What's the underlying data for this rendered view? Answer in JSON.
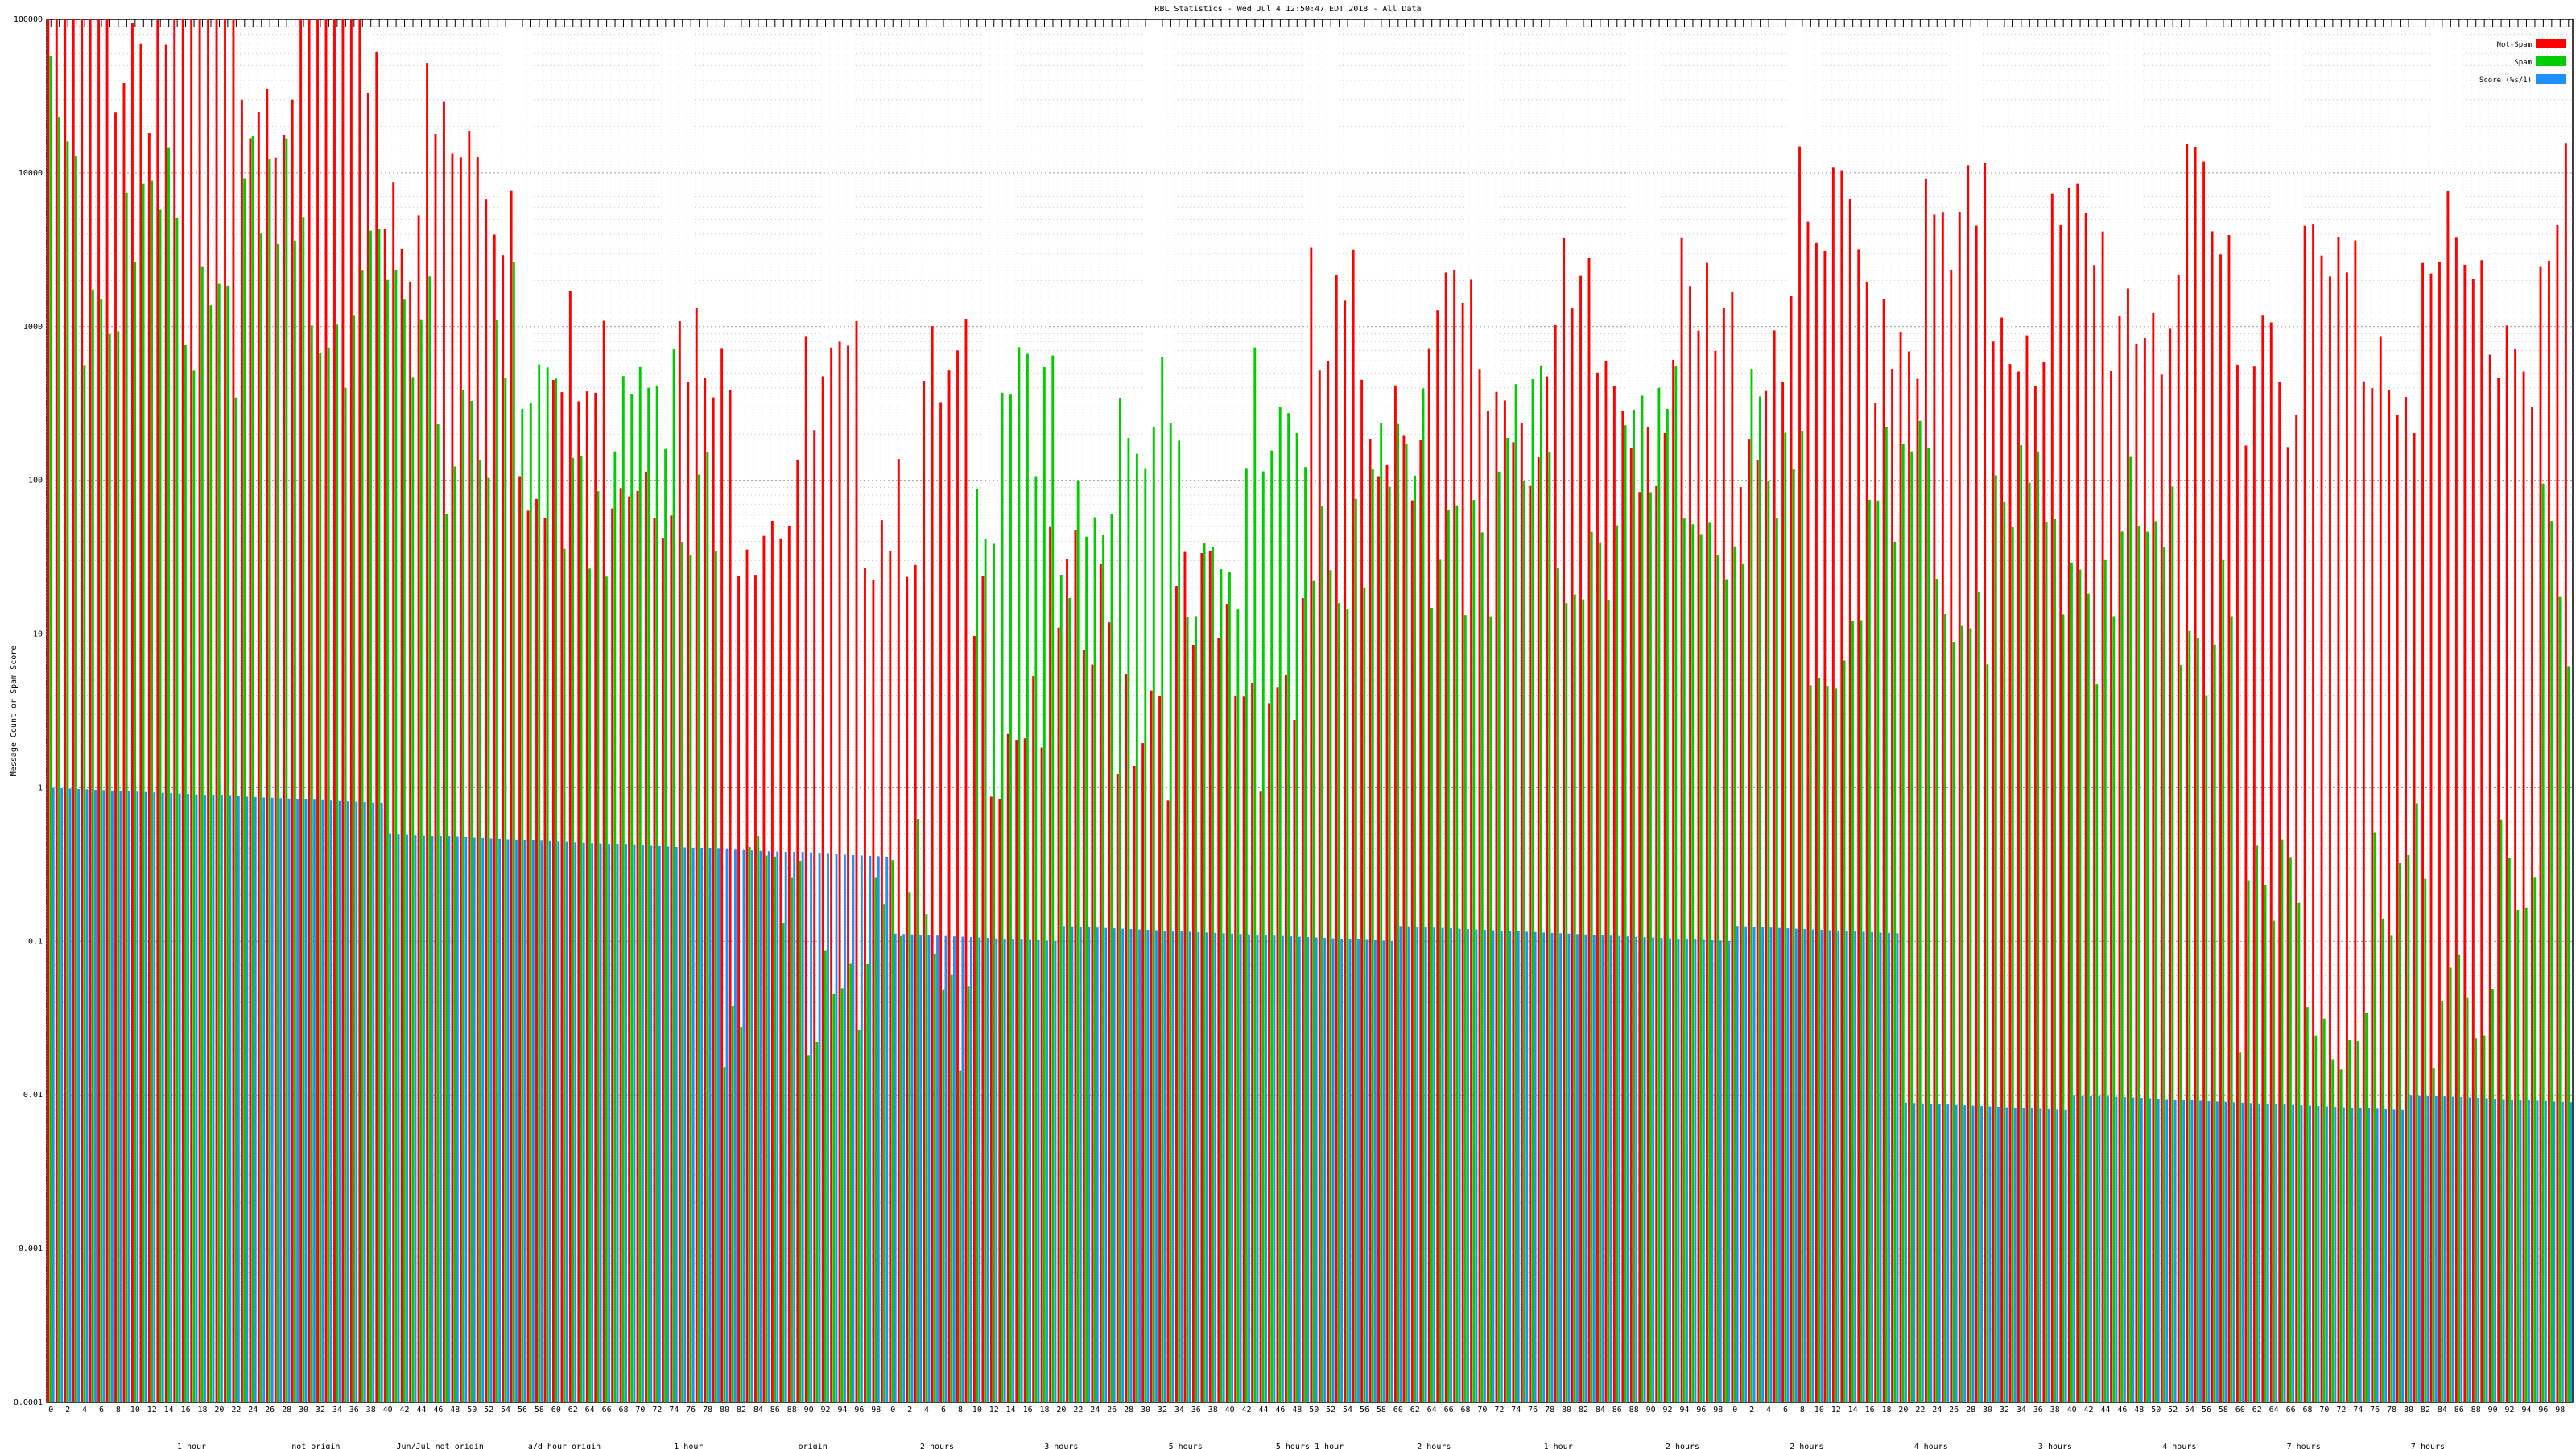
{
  "chart_data": {
    "type": "bar",
    "title": "RBL Statistics - Wed Jul  4 12:50:47 EDT 2018 - All Data",
    "ylabel": "Message Count or Spam Score",
    "xlabel": "",
    "scale": "log",
    "ylim": [
      0.0001,
      100000
    ],
    "yticks": [
      "0.0001",
      "0.001",
      "0.01",
      "0.1",
      "1",
      "10",
      "100",
      "1000",
      "10000",
      "100000"
    ],
    "grid": true,
    "legend_position": "top-right",
    "series": [
      {
        "name": "Not-Spam",
        "color": "#ff0000"
      },
      {
        "name": "Spam",
        "color": "#00cc00"
      },
      {
        "name": "Score (%s/1)",
        "color": "#1e90ff"
      }
    ],
    "group_count": 300,
    "segments": {
      "notspam": [
        [
          0,
          4,
          6
        ],
        [
          4,
          40,
          5
        ],
        [
          40,
          56,
          4
        ],
        [
          56,
          80,
          2.5
        ],
        [
          80,
          110,
          2.2
        ],
        [
          110,
          150,
          0.8
        ],
        [
          150,
          205,
          2.7
        ],
        [
          205,
          260,
          3.3
        ],
        [
          260,
          296,
          3.1
        ],
        [
          296,
          300,
          3.4
        ]
      ],
      "spam": [
        [
          0,
          4,
          4.6
        ],
        [
          4,
          40,
          3.4
        ],
        [
          40,
          56,
          2.6
        ],
        [
          56,
          80,
          2.2
        ],
        [
          80,
          110,
          -1
        ],
        [
          110,
          150,
          2.0
        ],
        [
          150,
          205,
          1.9
        ],
        [
          205,
          260,
          1.5
        ],
        [
          260,
          296,
          -1
        ],
        [
          296,
          300,
          1.5
        ]
      ],
      "score": [
        [
          0,
          40,
          0
        ],
        [
          40,
          80,
          -0.3
        ],
        [
          80,
          100,
          -0.4
        ],
        [
          100,
          220,
          -0.9
        ],
        [
          220,
          300,
          -2.0
        ]
      ]
    },
    "x_axis_sublabels": [
      "1 hour",
      "not origin",
      "Jun/Jul not origin",
      "a/d hour origin",
      "1 hour",
      "origin",
      "2 hours",
      "3 hours",
      "5 hours",
      "5 hours 1 hour",
      "2 hours",
      "1 hour",
      "2 hours",
      "2 hours",
      "4 hours",
      "3 hours",
      "4 hours",
      "7 hours",
      "7 hours"
    ]
  }
}
